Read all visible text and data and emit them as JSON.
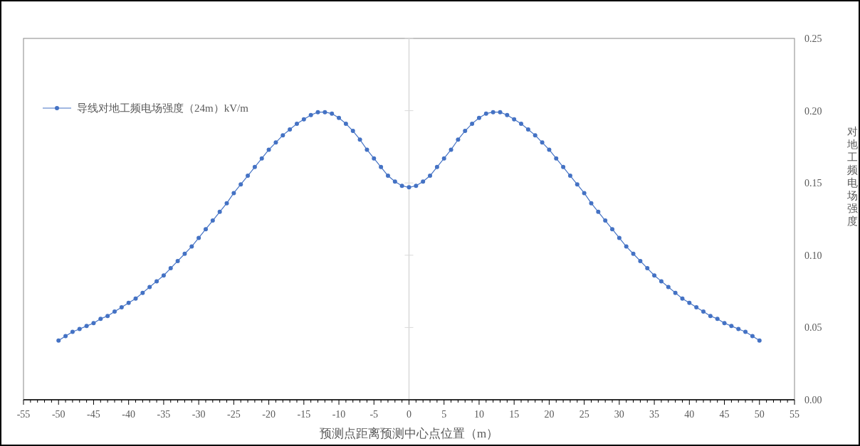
{
  "chart_data": {
    "type": "line",
    "xlabel": "预测点距离预测中心点位置（m）",
    "ylabel": "对地工频电场强度",
    "x": [
      -50,
      -49,
      -48,
      -47,
      -46,
      -45,
      -44,
      -43,
      -42,
      -41,
      -40,
      -39,
      -38,
      -37,
      -36,
      -35,
      -34,
      -33,
      -32,
      -31,
      -30,
      -29,
      -28,
      -27,
      -26,
      -25,
      -24,
      -23,
      -22,
      -21,
      -20,
      -19,
      -18,
      -17,
      -16,
      -15,
      -14,
      -13,
      -12,
      -11,
      -10,
      -9,
      -8,
      -7,
      -6,
      -5,
      -4,
      -3,
      -2,
      -1,
      0,
      1,
      2,
      3,
      4,
      5,
      6,
      7,
      8,
      9,
      10,
      11,
      12,
      13,
      14,
      15,
      16,
      17,
      18,
      19,
      20,
      21,
      22,
      23,
      24,
      25,
      26,
      27,
      28,
      29,
      30,
      31,
      32,
      33,
      34,
      35,
      36,
      37,
      38,
      39,
      40,
      41,
      42,
      43,
      44,
      45,
      46,
      47,
      48,
      49,
      50
    ],
    "series": [
      {
        "name": "导线对地工频电场强度（24m）kV/m",
        "color": "#4472c4",
        "values": [
          0.041,
          0.044,
          0.047,
          0.049,
          0.051,
          0.053,
          0.056,
          0.058,
          0.061,
          0.064,
          0.067,
          0.07,
          0.074,
          0.078,
          0.082,
          0.086,
          0.091,
          0.096,
          0.101,
          0.106,
          0.112,
          0.118,
          0.124,
          0.13,
          0.136,
          0.143,
          0.149,
          0.155,
          0.161,
          0.167,
          0.173,
          0.178,
          0.183,
          0.187,
          0.191,
          0.194,
          0.197,
          0.199,
          0.199,
          0.198,
          0.195,
          0.191,
          0.186,
          0.18,
          0.173,
          0.167,
          0.161,
          0.155,
          0.151,
          0.148,
          0.147,
          0.148,
          0.151,
          0.155,
          0.161,
          0.167,
          0.173,
          0.18,
          0.186,
          0.191,
          0.195,
          0.198,
          0.199,
          0.199,
          0.197,
          0.194,
          0.191,
          0.187,
          0.183,
          0.178,
          0.173,
          0.167,
          0.161,
          0.155,
          0.149,
          0.143,
          0.136,
          0.13,
          0.124,
          0.118,
          0.112,
          0.106,
          0.101,
          0.096,
          0.091,
          0.086,
          0.082,
          0.078,
          0.074,
          0.07,
          0.067,
          0.064,
          0.061,
          0.058,
          0.056,
          0.053,
          0.051,
          0.049,
          0.047,
          0.044,
          0.041
        ]
      }
    ],
    "xlim": [
      -55,
      55
    ],
    "xticks": [
      -55,
      -50,
      -45,
      -40,
      -35,
      -30,
      -25,
      -20,
      -15,
      -10,
      -5,
      0,
      5,
      10,
      15,
      20,
      25,
      30,
      35,
      40,
      45,
      50,
      55
    ],
    "ylim": [
      0,
      0.25
    ],
    "yticks": [
      {
        "value": 0,
        "label": "0.00"
      },
      {
        "value": 0.05,
        "label": "0.05"
      },
      {
        "value": 0.1,
        "label": "0.10"
      },
      {
        "value": 0.15,
        "label": "0.15"
      },
      {
        "value": 0.2,
        "label": "0.20"
      },
      {
        "value": 0.25,
        "label": "0.25"
      }
    ],
    "ref_lines": [
      {
        "axis": "x",
        "value": 0,
        "color": "#d9d9d9"
      }
    ],
    "marker": "circle",
    "legend": "top left",
    "grid": false
  }
}
